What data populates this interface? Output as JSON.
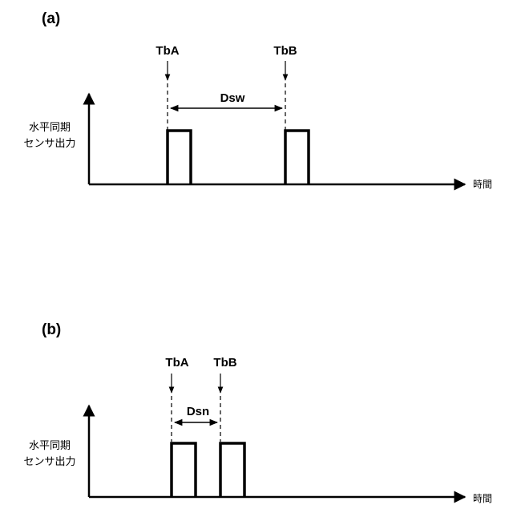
{
  "panels": [
    {
      "id": "a",
      "label": "(a)",
      "marker_a": "TbA",
      "marker_b": "TbB",
      "interval": "Dsw",
      "ylabel_line1": "水平同期",
      "ylabel_line2": "センサ出力",
      "xlabel": "時間"
    },
    {
      "id": "b",
      "label": "(b)",
      "marker_a": "TbA",
      "marker_b": "TbB",
      "interval": "Dsn",
      "ylabel_line1": "水平同期",
      "ylabel_line2": "センサ出力",
      "xlabel": "時間"
    }
  ]
}
